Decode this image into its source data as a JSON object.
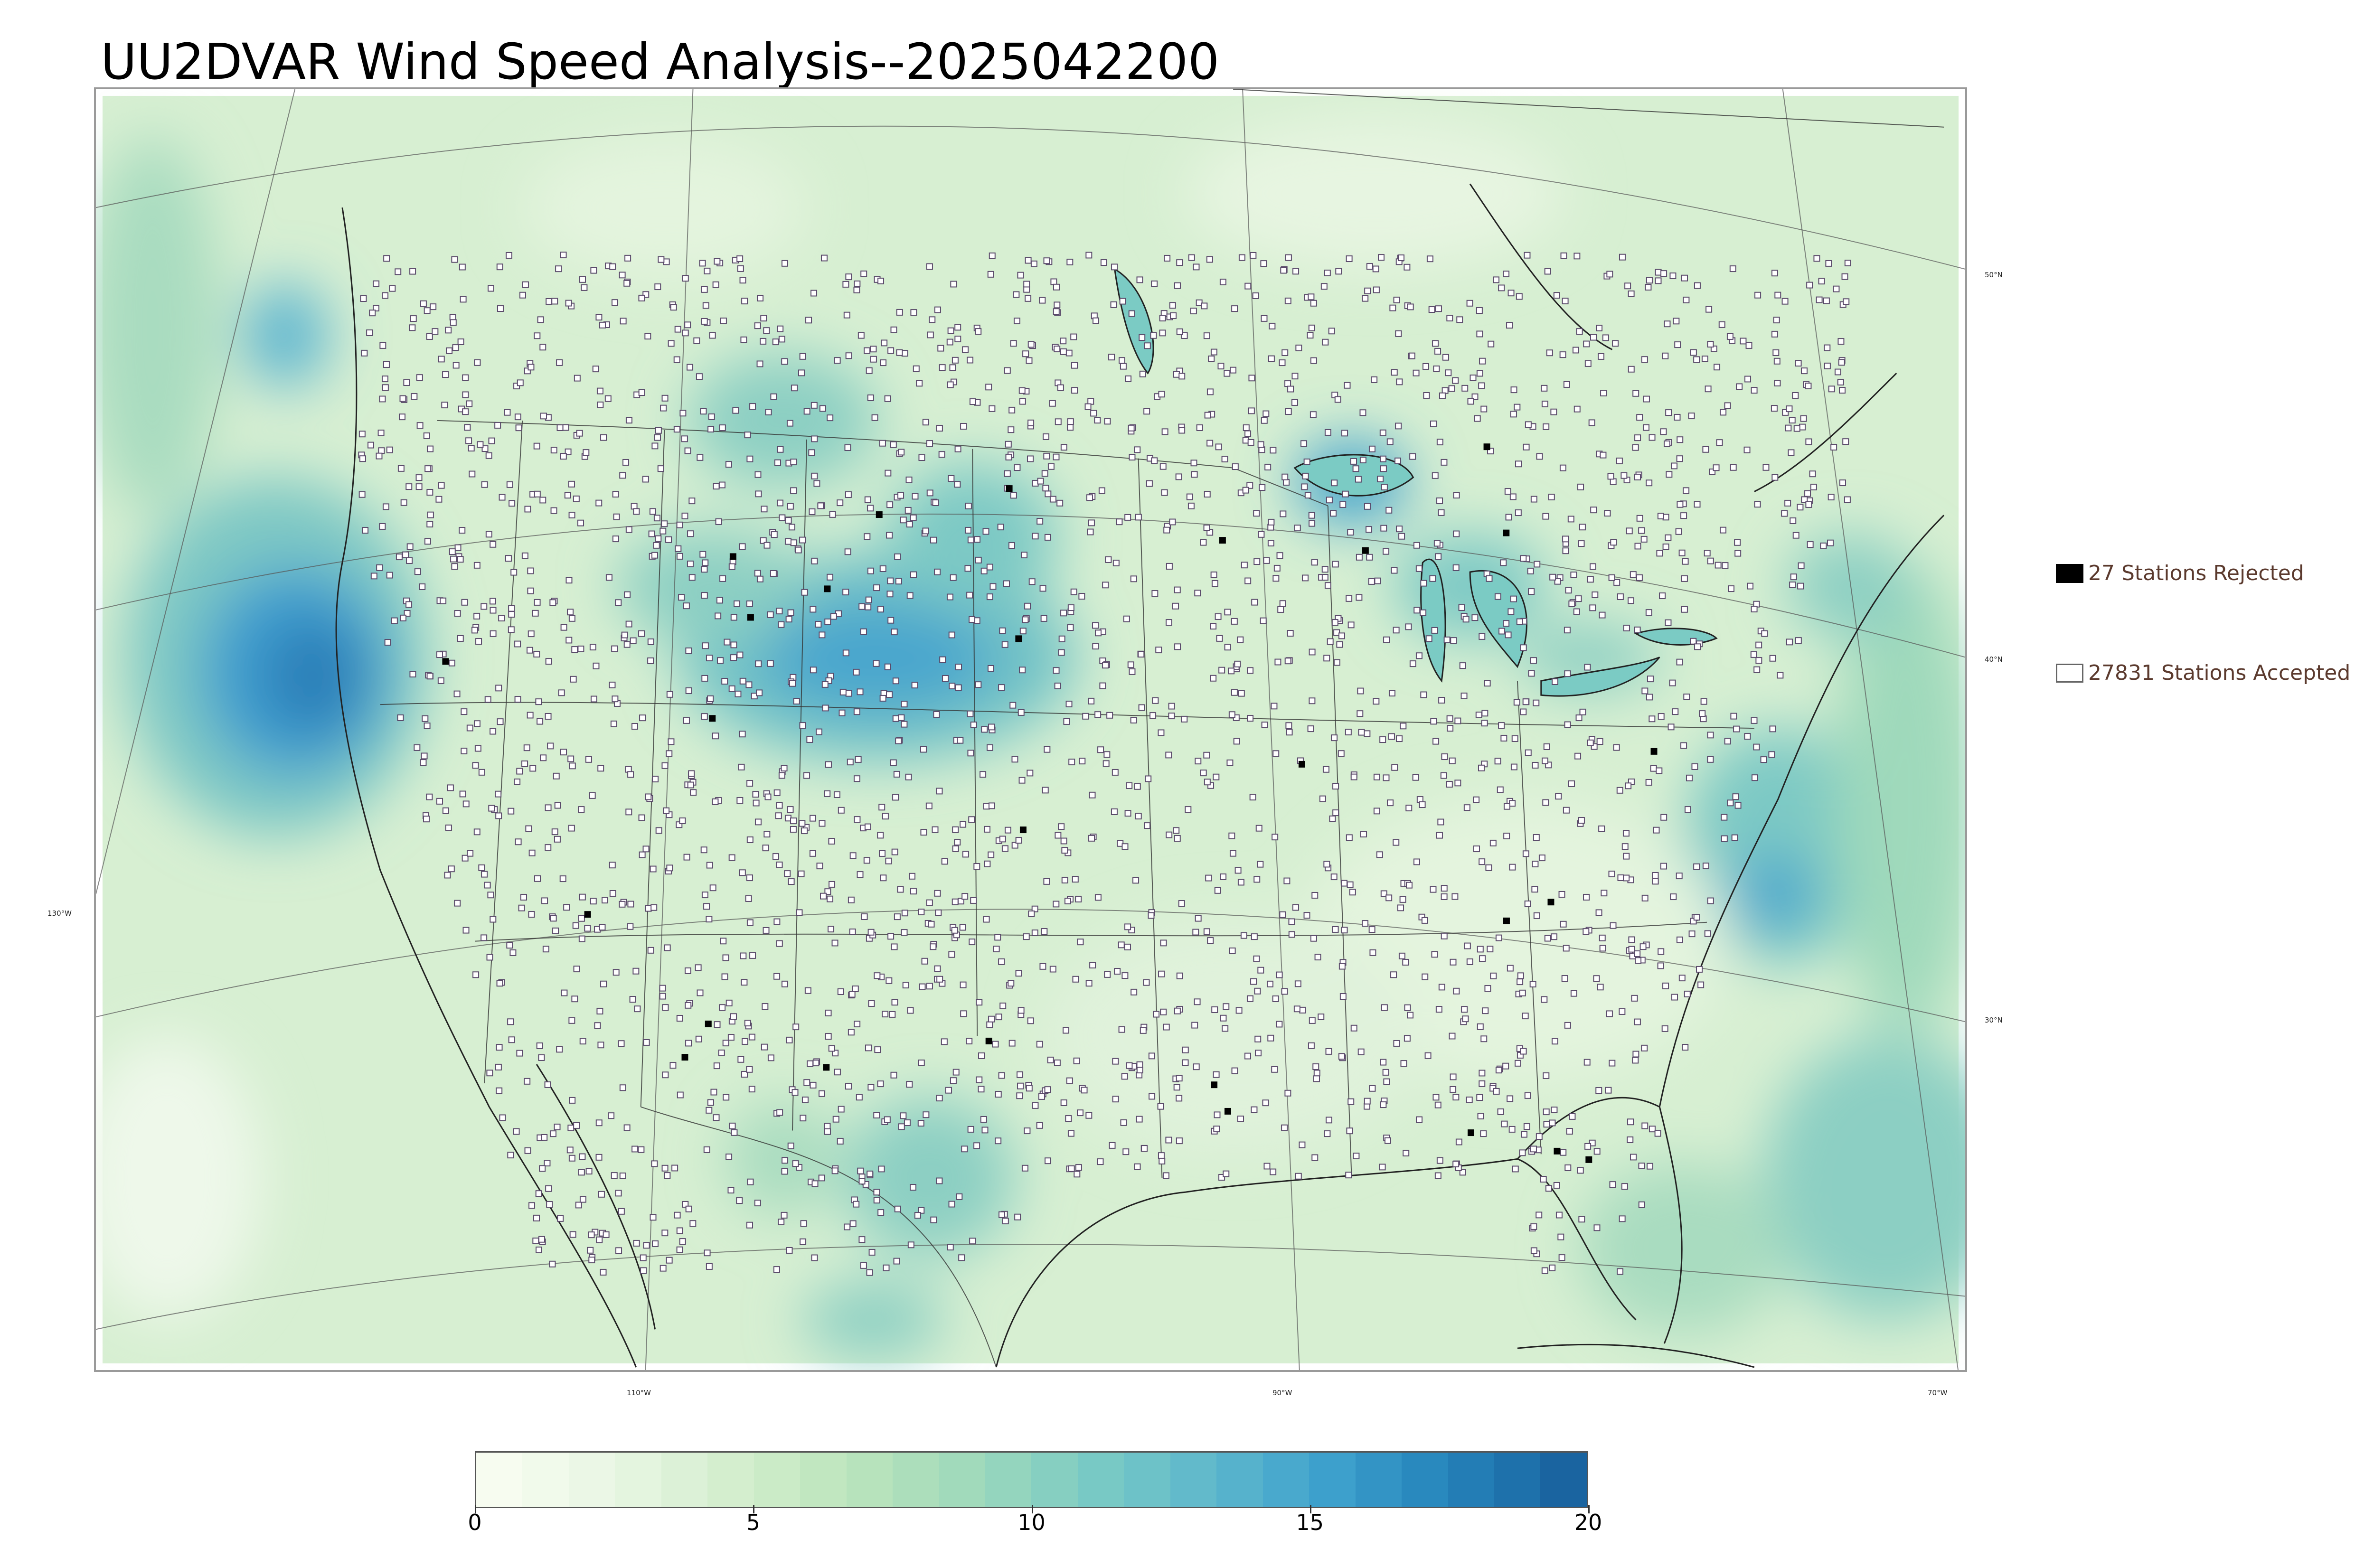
{
  "title": "UU2DVAR Wind Speed Analysis--2025042200",
  "map": {
    "projection": "lambert-conformal",
    "field": "wind speed",
    "colormap_colors": [
      "#f7fcf0",
      "#e8f6e3",
      "#d3eecd",
      "#bbe4bc",
      "#9fd9bb",
      "#7bcbc4",
      "#5eb8cc",
      "#3ea1cd",
      "#2584bb",
      "#1a64a0"
    ],
    "lat_labels": [
      "50°N",
      "40°N",
      "30°N"
    ],
    "lon_labels": [
      "130°W",
      "110°W",
      "90°W",
      "70°W"
    ],
    "station_color_accepted": "#ffffff",
    "station_color_rejected": "#000000"
  },
  "legend": {
    "rejected": "27 Stations Rejected",
    "accepted": "27831 Stations Accepted"
  },
  "colorbar": {
    "min": 0,
    "max": 20,
    "ticks": [
      "0",
      "5",
      "10",
      "15",
      "20"
    ]
  }
}
